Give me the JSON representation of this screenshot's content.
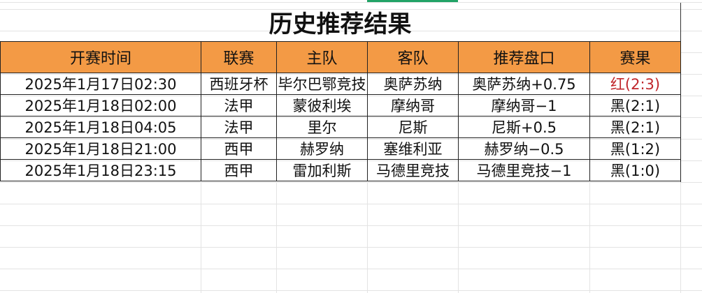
{
  "title": "历史推荐结果",
  "headers": [
    "开赛时间",
    "联赛",
    "主队",
    "客队",
    "推荐盘口",
    "赛果"
  ],
  "rows": [
    {
      "time": "2025年1月17日02:30",
      "league": "西班牙杯",
      "home": "毕尔巴鄂竞技",
      "away": "奥萨苏纳",
      "pick": "奥萨苏纳+0.75",
      "result": "红(2:3)",
      "result_color": "#c0262b"
    },
    {
      "time": "2025年1月18日02:00",
      "league": "法甲",
      "home": "蒙彼利埃",
      "away": "摩纳哥",
      "pick": "摩纳哥−1",
      "result": "黑(2:1)",
      "result_color": "#111111"
    },
    {
      "time": "2025年1月18日04:05",
      "league": "法甲",
      "home": "里尔",
      "away": "尼斯",
      "pick": "尼斯+0.5",
      "result": "黑(2:1)",
      "result_color": "#111111"
    },
    {
      "time": "2025年1月18日21:00",
      "league": "西甲",
      "home": "赫罗纳",
      "away": "塞维利亚",
      "pick": "赫罗纳−0.5",
      "result": "黑(1:2)",
      "result_color": "#111111"
    },
    {
      "time": "2025年1月18日23:15",
      "league": "西甲",
      "home": "雷加利斯",
      "away": "马德里竞技",
      "pick": "马德里竞技−1",
      "result": "黑(1:0)",
      "result_color": "#111111"
    }
  ],
  "colors": {
    "header_bg": "#f39a45",
    "selection": "#21a366"
  }
}
